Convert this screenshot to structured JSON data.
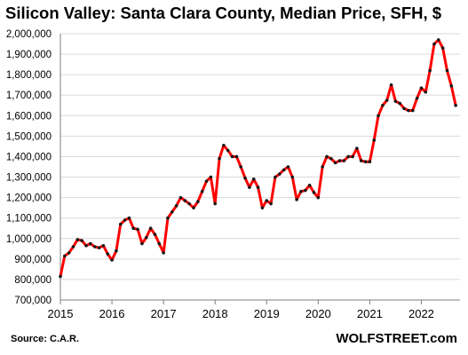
{
  "chart_data": {
    "type": "line",
    "title": "Silicon Valley: Santa Clara County, Median Price, SFH, $",
    "source": "Source: C.A.R.",
    "brand": "WOLFSTREET.com",
    "xlabel": "",
    "ylabel": "",
    "xlim": [
      2015,
      2022.75
    ],
    "ylim": [
      700000,
      2000000
    ],
    "y_ticks": [
      700000,
      800000,
      900000,
      1000000,
      1100000,
      1200000,
      1300000,
      1400000,
      1500000,
      1600000,
      1700000,
      1800000,
      1900000,
      2000000
    ],
    "y_tick_labels": [
      "700,000",
      "800,000",
      "900,000",
      "1,000,000",
      "1,100,000",
      "1,200,000",
      "1,300,000",
      "1,400,000",
      "1,500,000",
      "1,600,000",
      "1,700,000",
      "1,800,000",
      "1,900,000",
      "2,000,000"
    ],
    "x_ticks": [
      2015,
      2016,
      2017,
      2018,
      2019,
      2020,
      2021,
      2022
    ],
    "x_tick_labels": [
      "2015",
      "2016",
      "2017",
      "2018",
      "2019",
      "2020",
      "2021",
      "2022"
    ],
    "grid": true,
    "line_color": "#ff0000",
    "marker_color": "#1a1a1a",
    "grid_color": "#d9d9d9",
    "series": [
      {
        "values": [
          815000,
          915000,
          930000,
          960000,
          995000,
          990000,
          965000,
          975000,
          960000,
          955000,
          965000,
          925000,
          895000,
          940000,
          1070000,
          1090000,
          1100000,
          1050000,
          1045000,
          975000,
          1005000,
          1050000,
          1020000,
          975000,
          930000,
          1100000,
          1130000,
          1160000,
          1200000,
          1185000,
          1170000,
          1150000,
          1180000,
          1230000,
          1280000,
          1300000,
          1170000,
          1390000,
          1455000,
          1430000,
          1400000,
          1400000,
          1350000,
          1295000,
          1250000,
          1290000,
          1250000,
          1150000,
          1185000,
          1170000,
          1300000,
          1315000,
          1335000,
          1350000,
          1300000,
          1190000,
          1230000,
          1235000,
          1260000,
          1225000,
          1200000,
          1350000,
          1400000,
          1390000,
          1370000,
          1380000,
          1380000,
          1400000,
          1400000,
          1440000,
          1380000,
          1375000,
          1375000,
          1480000,
          1600000,
          1650000,
          1675000,
          1750000,
          1670000,
          1660000,
          1635000,
          1625000,
          1625000,
          1685000,
          1735000,
          1715000,
          1820000,
          1950000,
          1970000,
          1930000,
          1820000,
          1745000,
          1650000
        ]
      }
    ],
    "x_start": 2015,
    "x_step_per_point": 0.08333
  }
}
